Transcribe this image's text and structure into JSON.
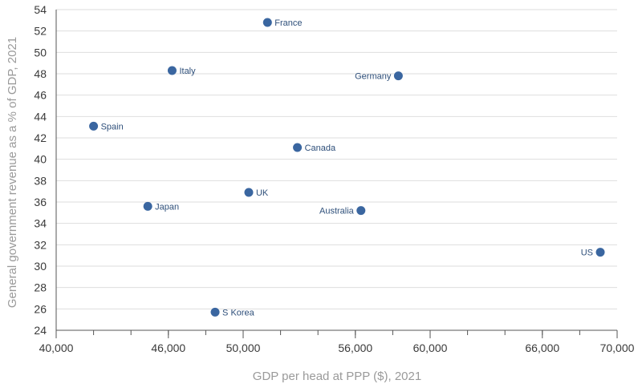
{
  "chart_data": {
    "type": "scatter",
    "title": "",
    "xlabel": "GDP per head at PPP ($), 2021",
    "ylabel": "General government revenue as a % of GDP, 2021",
    "xlim": [
      40000,
      70000
    ],
    "ylim": [
      24,
      54
    ],
    "x_ticks": [
      40000,
      46000,
      50000,
      56000,
      60000,
      66000,
      70000
    ],
    "x_tick_labels": [
      "40,000",
      "46,000",
      "50,000",
      "56,000",
      "60,000",
      "66,000",
      "70,000"
    ],
    "y_ticks": [
      24,
      26,
      28,
      30,
      32,
      34,
      36,
      38,
      40,
      42,
      44,
      46,
      48,
      50,
      52,
      54
    ],
    "grid": "horizontal",
    "marker_color": "#3a66a0",
    "points": [
      {
        "label": "France",
        "x": 51300,
        "y": 52.8,
        "label_side": "right"
      },
      {
        "label": "Italy",
        "x": 46200,
        "y": 48.3,
        "label_side": "right"
      },
      {
        "label": "Germany",
        "x": 58300,
        "y": 47.8,
        "label_side": "left"
      },
      {
        "label": "Spain",
        "x": 42000,
        "y": 43.1,
        "label_side": "right"
      },
      {
        "label": "Canada",
        "x": 52900,
        "y": 41.1,
        "label_side": "right"
      },
      {
        "label": "UK",
        "x": 50300,
        "y": 36.9,
        "label_side": "right"
      },
      {
        "label": "Japan",
        "x": 44900,
        "y": 35.6,
        "label_side": "right"
      },
      {
        "label": "Australia",
        "x": 56300,
        "y": 35.2,
        "label_side": "left"
      },
      {
        "label": "US",
        "x": 69100,
        "y": 31.3,
        "label_side": "left"
      },
      {
        "label": "S Korea",
        "x": 48500,
        "y": 25.7,
        "label_side": "right"
      }
    ]
  }
}
